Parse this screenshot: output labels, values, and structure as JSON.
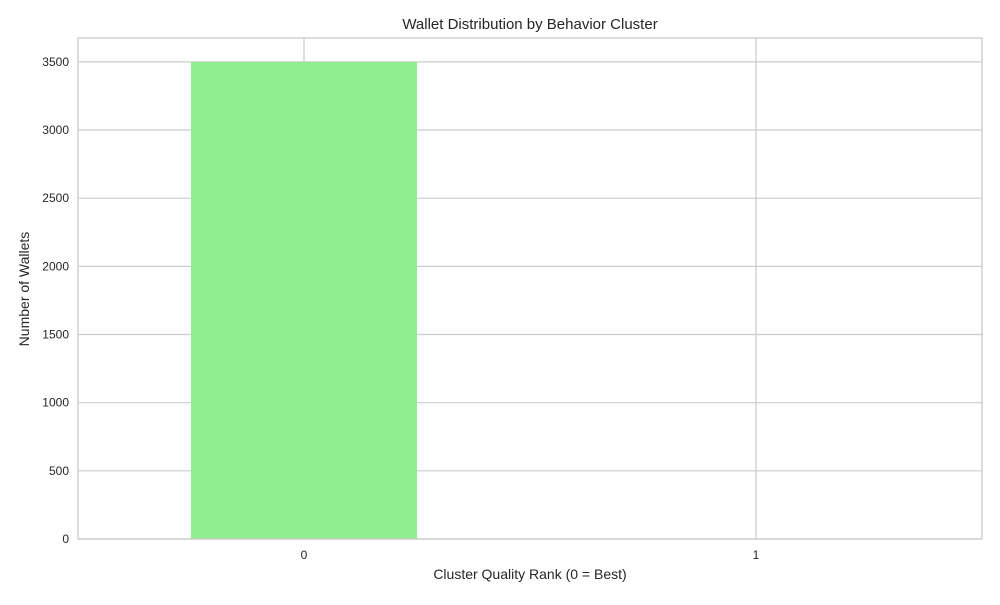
{
  "chart_data": {
    "type": "bar",
    "title": "Wallet Distribution by Behavior Cluster",
    "xlabel": "Cluster Quality Rank (0 = Best)",
    "ylabel": "Number of Wallets",
    "categories": [
      "0",
      "1"
    ],
    "values": [
      3500,
      0
    ],
    "bar_color": "#90ee90",
    "ylim": [
      0,
      3675
    ],
    "yticks": [
      0,
      500,
      1000,
      1500,
      2000,
      2500,
      3000,
      3500
    ],
    "grid": true,
    "legend": "none"
  },
  "colors": {
    "grid": "#cccccc",
    "frame": "#cccccc",
    "text": "#262626",
    "background": "#ffffff"
  }
}
